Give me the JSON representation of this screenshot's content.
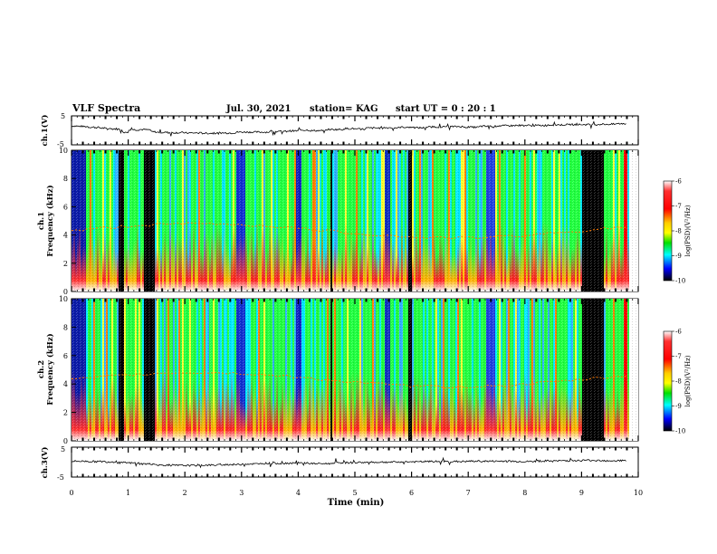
{
  "header": {
    "title": "VLF Spectra",
    "date": "Jul. 30, 2021",
    "station": "station= KAG",
    "start": "start  UT =   0 : 20 : 1"
  },
  "chart_data": [
    {
      "type": "line",
      "name": "ch1-voltage",
      "ylabel": "ch.1(V)",
      "ylim": [
        -5,
        5
      ],
      "yticks": [
        "5",
        "-5"
      ],
      "x_range_min": [
        0,
        10
      ],
      "level_x": [
        0,
        0.1,
        0.2,
        0.3,
        0.4,
        0.5,
        0.6,
        0.7,
        0.8,
        0.9,
        1.0,
        1.1,
        1.2,
        1.3,
        1.4,
        1.5,
        1.7,
        2.0,
        2.3,
        2.6,
        2.9,
        3.2,
        3.5,
        3.8,
        4.0,
        4.2,
        4.5,
        4.8,
        5.0,
        5.2,
        5.5,
        5.8,
        6.0,
        6.3,
        6.6,
        6.9,
        7.2,
        7.5,
        7.8,
        8.1,
        8.4,
        8.7,
        9.0,
        9.3,
        9.6,
        9.8
      ],
      "level_y": [
        1.5,
        1.4,
        1.3,
        1.1,
        1.0,
        0.8,
        0.6,
        0.5,
        0.4,
        -0.6,
        0.3,
        0.2,
        0.3,
        0.2,
        -0.5,
        -0.7,
        -0.8,
        -0.9,
        -1.0,
        -0.9,
        -0.6,
        -0.6,
        -0.4,
        -0.2,
        0.1,
        -0.1,
        0.3,
        0.6,
        0.4,
        0.8,
        0.9,
        1.1,
        0.9,
        1.2,
        1.3,
        1.1,
        1.4,
        1.6,
        1.7,
        1.7,
        1.9,
        2.0,
        2.0,
        2.1,
        2.3,
        2.3
      ]
    },
    {
      "type": "heatmap",
      "name": "ch1-spectrogram",
      "ylabel": "ch.1",
      "ylabel2": "Frequency (kHz)",
      "ylim": [
        0,
        10
      ],
      "yticks": [
        0,
        2,
        4,
        6,
        8,
        10
      ],
      "xlim": [
        0,
        10
      ],
      "colorbar": {
        "label": "log(PSD)(V²/Hz)",
        "range": [
          -10,
          -6
        ],
        "ticks": [
          "-6",
          "-7",
          "-8",
          "-9",
          "-10"
        ]
      }
    },
    {
      "type": "heatmap",
      "name": "ch2-spectrogram",
      "ylabel": "ch.2",
      "ylabel2": "Frequency (kHz)",
      "ylim": [
        0,
        10
      ],
      "yticks": [
        0,
        2,
        4,
        6,
        8,
        10
      ],
      "xlim": [
        0,
        10
      ],
      "colorbar": {
        "label": "log(PSD)(V²/Hz)",
        "range": [
          -10,
          -6
        ],
        "ticks": [
          "-6",
          "-7",
          "-8",
          "-9",
          "-10"
        ]
      }
    },
    {
      "type": "line",
      "name": "ch3-voltage",
      "ylabel": "ch.3(V)",
      "ylim": [
        -5,
        5
      ],
      "yticks": [
        "5",
        "-5"
      ],
      "level_x": [
        0,
        0.3,
        0.6,
        0.8,
        1.0,
        1.2,
        1.5,
        1.8,
        2.2,
        2.6,
        3.0,
        3.4,
        3.8,
        4.2,
        4.6,
        5.0,
        5.4,
        5.8,
        6.2,
        6.6,
        7.0,
        7.4,
        7.8,
        8.2,
        8.6,
        9.0,
        9.4,
        9.8
      ],
      "level_y": [
        0.3,
        0.2,
        0.1,
        -0.2,
        -0.3,
        -0.6,
        -1.0,
        -1.1,
        -1.0,
        -0.8,
        -0.6,
        -0.4,
        -0.3,
        -0.5,
        -0.2,
        -0.1,
        0.0,
        0.1,
        0.2,
        0.2,
        0.3,
        0.3,
        0.2,
        0.4,
        0.5,
        0.6,
        0.5,
        0.5
      ]
    }
  ],
  "xaxis": {
    "label": "Time (min)",
    "ticks": [
      "0",
      "1",
      "2",
      "3",
      "4",
      "5",
      "6",
      "7",
      "8",
      "9",
      "10"
    ],
    "range": [
      0,
      10
    ]
  },
  "colors": {
    "scale": [
      "#ffffff",
      "#ff0000",
      "#ffa500",
      "#ffff00",
      "#00e000",
      "#00ffff",
      "#0000ff",
      "#000000"
    ]
  }
}
